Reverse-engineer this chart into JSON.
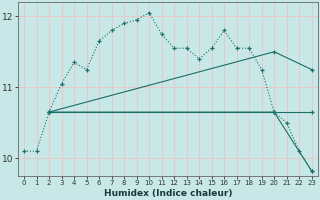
{
  "xlabel": "Humidex (Indice chaleur)",
  "bg_color": "#c8e8e8",
  "grid_color": "#e8c8c8",
  "line_color": "#1a6e65",
  "ylim": [
    9.75,
    12.2
  ],
  "xlim": [
    -0.5,
    23.5
  ],
  "yticks": [
    10,
    11,
    12
  ],
  "xticks": [
    0,
    1,
    2,
    3,
    4,
    5,
    6,
    7,
    8,
    9,
    10,
    11,
    12,
    13,
    14,
    15,
    16,
    17,
    18,
    19,
    20,
    21,
    22,
    23
  ],
  "dotted_x": [
    0,
    1,
    2,
    3,
    4,
    5,
    6,
    7,
    8,
    9,
    10,
    11,
    12,
    13,
    14,
    15,
    16,
    17,
    18,
    19,
    20,
    21,
    22,
    23
  ],
  "dotted_y": [
    10.1,
    10.1,
    10.65,
    11.05,
    11.35,
    11.25,
    11.65,
    11.8,
    11.9,
    11.95,
    12.05,
    11.75,
    11.55,
    11.55,
    11.4,
    11.55,
    11.8,
    11.55,
    11.55,
    11.25,
    10.65,
    10.5,
    10.1,
    9.82
  ],
  "fan_lines": [
    {
      "x": [
        2,
        20,
        23
      ],
      "y": [
        10.65,
        11.5,
        11.25
      ]
    },
    {
      "x": [
        2,
        20,
        23
      ],
      "y": [
        10.65,
        10.65,
        10.65
      ]
    },
    {
      "x": [
        2,
        20,
        23
      ],
      "y": [
        10.65,
        10.65,
        9.82
      ]
    }
  ]
}
